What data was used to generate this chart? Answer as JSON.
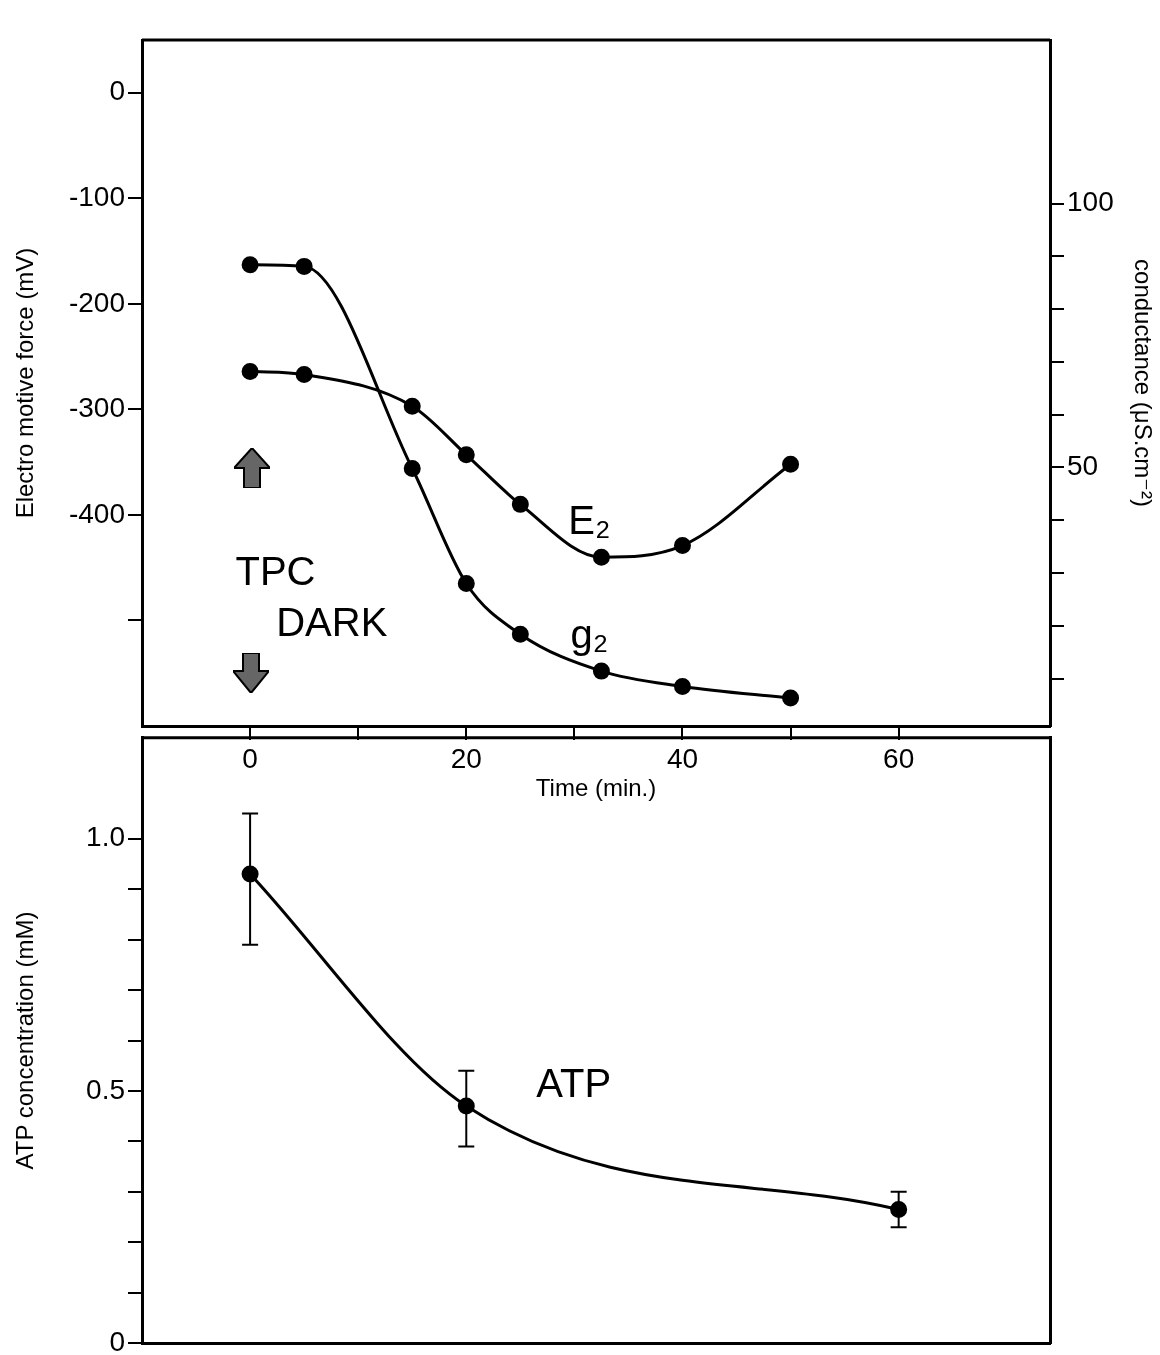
{
  "chart_data": [
    {
      "type": "line",
      "xlabel": "Time (min.)",
      "ylabel": "Electro motive force (mV)",
      "y2label": "conductance (μS.cm⁻²)",
      "xlim": [
        -10,
        74
      ],
      "xticks": [
        0,
        {
          "value": 10,
          "label": null
        },
        20,
        {
          "value": 30,
          "label": null
        },
        40,
        {
          "value": 50,
          "label": null
        },
        60
      ],
      "ylim": [
        -600,
        50
      ],
      "yticks": [
        0,
        -100,
        -200,
        -300,
        -400,
        {
          "value": -500,
          "label": null
        }
      ],
      "y2lim": [
        1,
        131
      ],
      "y2ticks": [
        {
          "value": 10,
          "label": null
        },
        {
          "value": 20,
          "label": null
        },
        {
          "value": 30,
          "label": null
        },
        {
          "value": 40,
          "label": null
        },
        50,
        {
          "value": 60,
          "label": null
        },
        {
          "value": 70,
          "label": null
        },
        {
          "value": 80,
          "label": null
        },
        {
          "value": 90,
          "label": null
        },
        100
      ],
      "series": [
        {
          "name": "E₂",
          "color": "#000000",
          "x": [
            0,
            5,
            15,
            20,
            25,
            32.5,
            40,
            50
          ],
          "values": [
            -264,
            -267,
            -297,
            -343,
            -390,
            -440,
            -429,
            -352
          ]
        },
        {
          "name": "g₂",
          "color": "#000000",
          "axis": "y2",
          "x": [
            0,
            5,
            15,
            20,
            25,
            32.5,
            40,
            50
          ],
          "values": [
            88.4,
            88.1,
            49.8,
            28,
            18.4,
            11.4,
            8.5,
            6.3
          ]
        }
      ],
      "annotations": [
        "TPC",
        "DARK"
      ],
      "marker": "circle",
      "line_style": "solid",
      "grid": false,
      "legend": false
    },
    {
      "type": "line",
      "ylabel": "ATP concentration (mM)",
      "xlim": [
        -10,
        74
      ],
      "xticks": [
        0,
        10,
        20,
        30,
        40,
        50,
        60
      ],
      "tick_labels": "y",
      "ylim": [
        0,
        1.2
      ],
      "yticks": [
        0,
        {
          "value": 0.1,
          "label": null
        },
        {
          "value": 0.2,
          "label": null
        },
        {
          "value": 0.3,
          "label": null
        },
        {
          "value": 0.4,
          "label": null
        },
        0.5,
        {
          "value": 0.6,
          "label": null
        },
        {
          "value": 0.7,
          "label": null
        },
        {
          "value": 0.8,
          "label": null
        },
        {
          "value": 0.9,
          "label": null
        },
        {
          "value": 1,
          "label": "1.0"
        }
      ],
      "series": [
        {
          "name": "ATP",
          "color": "#000000",
          "x": [
            0,
            20,
            60
          ],
          "values": [
            0.93,
            0.47,
            0.265
          ],
          "errors": [
            [
              0.79,
              1.05
            ],
            [
              0.39,
              0.54
            ],
            [
              0.23,
              0.3
            ]
          ]
        }
      ],
      "marker": "circle",
      "line_style": "solid",
      "grid": false,
      "legend": false
    }
  ]
}
